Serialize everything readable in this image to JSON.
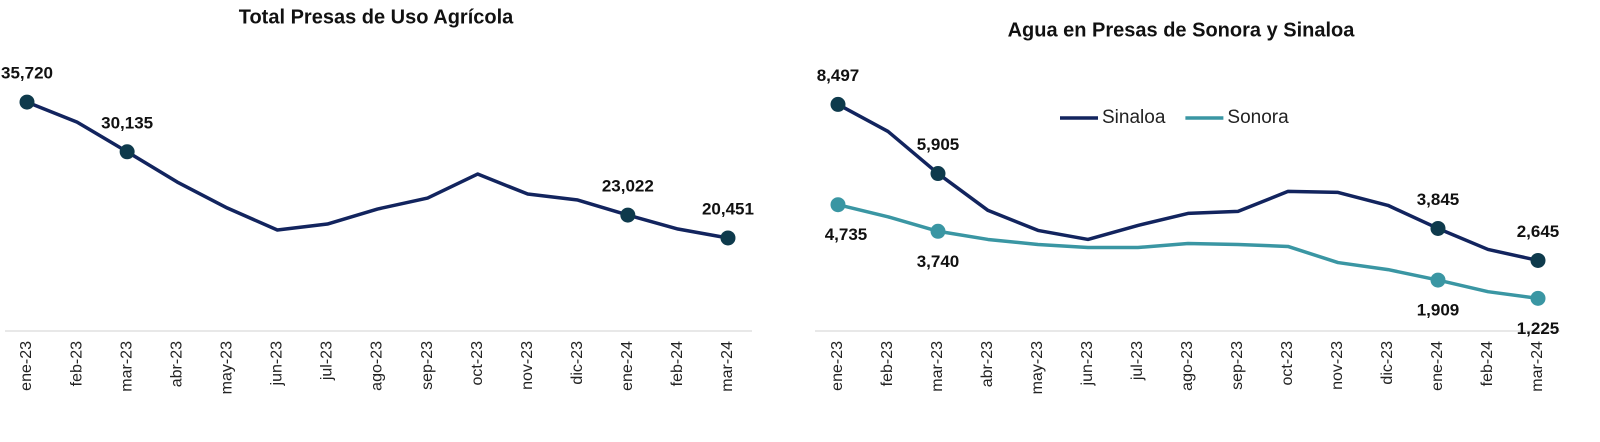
{
  "chart_data": [
    {
      "type": "line",
      "title": "Total Presas de Uso Agrícola",
      "categories": [
        "ene-23",
        "feb-23",
        "mar-23",
        "abr-23",
        "may-23",
        "jun-23",
        "jul-23",
        "ago-23",
        "sep-23",
        "oct-23",
        "nov-23",
        "dic-23",
        "ene-24",
        "feb-24",
        "mar-24"
      ],
      "values": [
        35720,
        33474,
        30135,
        26736,
        23816,
        21346,
        22020,
        23704,
        24939,
        27634,
        25388,
        24714,
        23022,
        21459,
        20451
      ],
      "value_labels": [
        "35,720",
        null,
        "30,135",
        null,
        null,
        null,
        null,
        null,
        null,
        null,
        null,
        null,
        "23,022",
        null,
        "20,451"
      ],
      "color": "#12245e",
      "marker_color": "#0e3a4c",
      "ylim": [
        10000,
        40000
      ]
    },
    {
      "type": "line",
      "title": "Agua en Presas de Sonora y Sinaloa",
      "categories": [
        "ene-23",
        "feb-23",
        "mar-23",
        "abr-23",
        "may-23",
        "jun-23",
        "jul-23",
        "ago-23",
        "sep-23",
        "oct-23",
        "nov-23",
        "dic-23",
        "ene-24",
        "feb-24",
        "mar-24"
      ],
      "series": [
        {
          "name": "Sinaloa",
          "color": "#12245e",
          "marker_color": "#0e3a4c",
          "values": [
            8497,
            7484,
            5905,
            4522,
            3772,
            3434,
            3959,
            4409,
            4484,
            5234,
            5197,
            4710,
            3845,
            3059,
            2645
          ],
          "value_labels": [
            "8,497",
            null,
            "5,905",
            null,
            null,
            null,
            null,
            null,
            null,
            null,
            null,
            null,
            "3,845",
            null,
            "2,645"
          ]
        },
        {
          "name": "Sonora",
          "color": "#3a96a3",
          "marker_color": "#3a96a3",
          "values": [
            4735,
            4283,
            3740,
            3433,
            3245,
            3132,
            3132,
            3283,
            3245,
            3170,
            2566,
            2303,
            1909,
            1474,
            1225
          ],
          "value_labels": [
            "4,735",
            null,
            "3,740",
            null,
            null,
            null,
            null,
            null,
            null,
            null,
            null,
            null,
            "1,909",
            null,
            "1,225"
          ]
        }
      ],
      "ylim": [
        0,
        9000
      ],
      "legend": "top"
    }
  ]
}
